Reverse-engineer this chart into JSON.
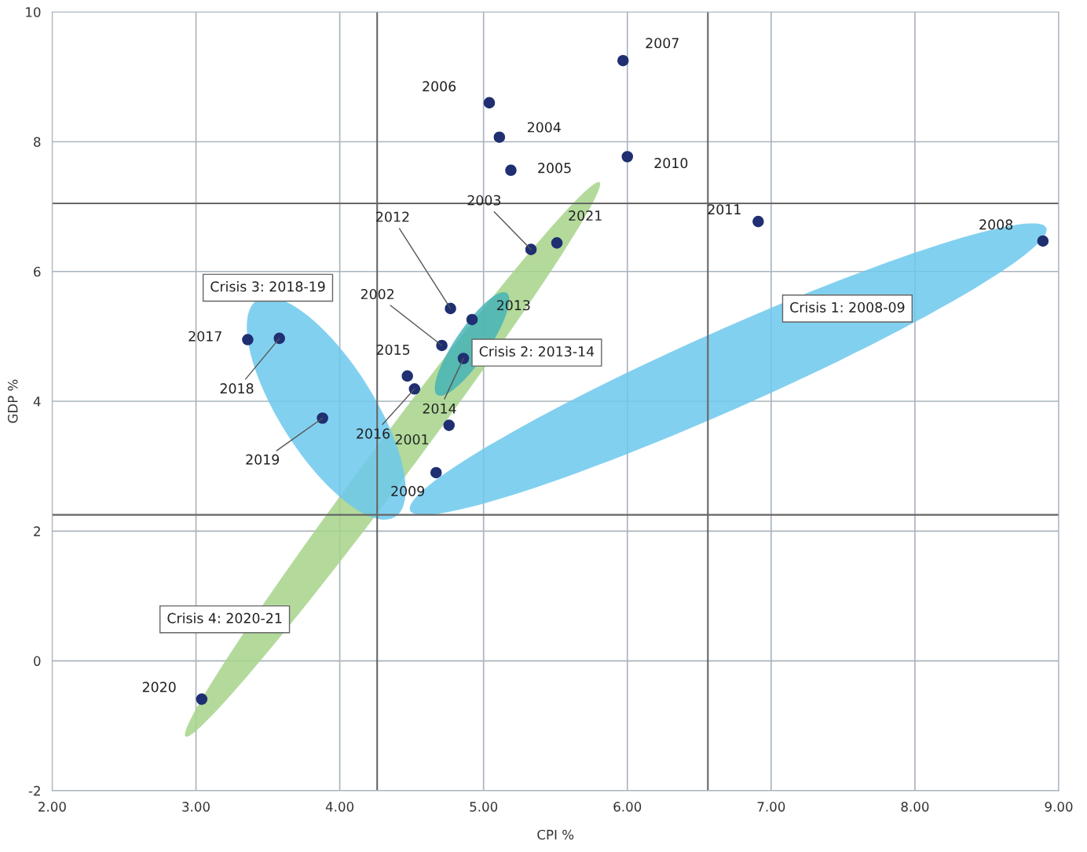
{
  "chart_data": {
    "type": "scatter",
    "xlabel": "CPI %",
    "ylabel": "GDP %",
    "x": [
      5.97,
      5.04,
      5.11,
      5.19,
      6.0,
      6.91,
      8.89,
      5.33,
      5.51,
      4.77,
      4.92,
      4.71,
      4.86,
      4.47,
      4.52,
      4.76,
      4.67,
      3.36,
      3.58,
      3.88,
      3.04
    ],
    "series": [
      {
        "color": "#1f2f72",
        "values": [
          9.25,
          8.6,
          8.07,
          7.56,
          7.77,
          6.77,
          6.47,
          6.34,
          6.44,
          5.43,
          5.26,
          4.86,
          4.66,
          4.39,
          4.19,
          3.63,
          2.9,
          4.95,
          4.97,
          3.74,
          -0.59
        ]
      }
    ],
    "marker": "circle",
    "xlim": [
      2,
      9
    ],
    "ylim": [
      -2,
      10
    ],
    "xticks": [
      {
        "value": 2,
        "label": "2.00"
      },
      {
        "value": 3,
        "label": "3.00"
      },
      {
        "value": 4,
        "label": "4.00"
      },
      {
        "value": 5,
        "label": "5.00"
      },
      {
        "value": 6,
        "label": "6.00"
      },
      {
        "value": 7,
        "label": "7.00"
      },
      {
        "value": 8,
        "label": "8.00"
      },
      {
        "value": 9,
        "label": "9.00"
      }
    ],
    "yticks": [
      -2,
      0,
      2,
      4,
      6,
      8,
      10
    ],
    "grid": true,
    "ref_lines": [
      {
        "axis": "x",
        "value": 4.26,
        "color": "#666666"
      },
      {
        "axis": "x",
        "value": 6.56,
        "color": "#666666"
      },
      {
        "axis": "y",
        "value": 7.05,
        "color": "#666666"
      },
      {
        "axis": "y",
        "value": 2.25,
        "color": "#666666"
      }
    ],
    "annotations": [
      {
        "text": "2007",
        "x": 5.97,
        "y": 9.25
      },
      {
        "text": "2006",
        "x": 5.04,
        "y": 8.6
      },
      {
        "text": "2004",
        "x": 5.11,
        "y": 8.07
      },
      {
        "text": "2005",
        "x": 5.19,
        "y": 7.56
      },
      {
        "text": "2010",
        "x": 6.0,
        "y": 7.77
      },
      {
        "text": "2011",
        "x": 6.91,
        "y": 6.77
      },
      {
        "text": "2008",
        "x": 8.89,
        "y": 6.47
      },
      {
        "text": "2003",
        "x": 5.33,
        "y": 6.34
      },
      {
        "text": "2021",
        "x": 5.51,
        "y": 6.44
      },
      {
        "text": "2012",
        "x": 4.77,
        "y": 5.43
      },
      {
        "text": "2013",
        "x": 4.92,
        "y": 5.26
      },
      {
        "text": "2002",
        "x": 4.71,
        "y": 4.86
      },
      {
        "text": "2014",
        "x": 4.86,
        "y": 4.66
      },
      {
        "text": "2015",
        "x": 4.47,
        "y": 4.39
      },
      {
        "text": "2016",
        "x": 4.52,
        "y": 4.19
      },
      {
        "text": "2001",
        "x": 4.76,
        "y": 3.63
      },
      {
        "text": "2009",
        "x": 4.67,
        "y": 2.9
      },
      {
        "text": "2017",
        "x": 3.36,
        "y": 4.95
      },
      {
        "text": "2018",
        "x": 3.58,
        "y": 4.97
      },
      {
        "text": "2019",
        "x": 3.88,
        "y": 3.74
      },
      {
        "text": "2020",
        "x": 3.04,
        "y": -0.59
      },
      "Crisis 3: 2018-19",
      "Crisis 1: 2008-09",
      "Crisis 2: 2013-14",
      "Crisis 4: 2020-21"
    ]
  }
}
